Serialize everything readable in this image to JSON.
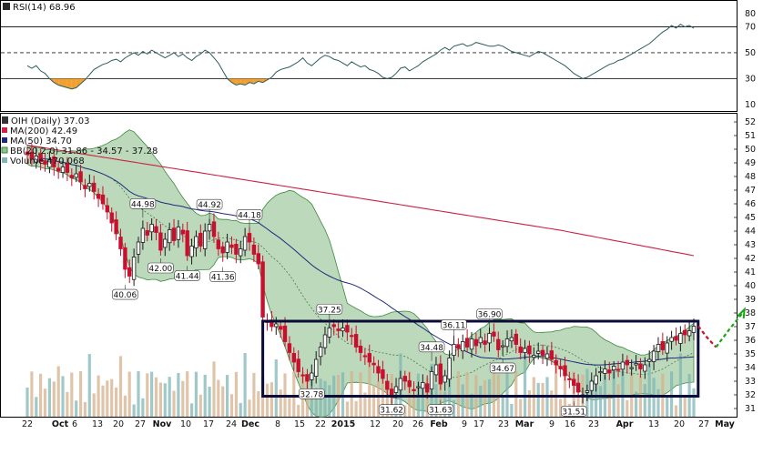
{
  "rsi_panel": {
    "label": "RSI(14) 68.96",
    "ticks": [
      80,
      70,
      50,
      30,
      10
    ],
    "bands": {
      "upper": 70,
      "mid": 50,
      "lower": 30
    },
    "range": [
      5,
      90
    ]
  },
  "price_panel": {
    "legend": [
      {
        "text": "OIH (Daily) 37.03",
        "color": "#111111"
      },
      {
        "text": "MA(200) 42.49",
        "color": "#cc2244"
      },
      {
        "text": "MA(50) 34.70",
        "color": "#1c2a7a"
      },
      {
        "text": "BB(20,2.0) 31.86 - 34.57 - 37.28",
        "color": "#3a8a3a"
      },
      {
        "text": "Volume 470,068",
        "color": "#3a8a8a"
      }
    ],
    "y_ticks": [
      52,
      51,
      50,
      49,
      48,
      47,
      46,
      45,
      44,
      43,
      42,
      41,
      40,
      39,
      38,
      37,
      36,
      35,
      34,
      33,
      32,
      31
    ],
    "y_range": [
      30.4,
      52.6
    ],
    "x_labels": [
      {
        "text": "22",
        "bold": false
      },
      {
        "text": "Oct",
        "bold": true
      },
      {
        "text": "6",
        "bold": false
      },
      {
        "text": "13",
        "bold": false
      },
      {
        "text": "20",
        "bold": false
      },
      {
        "text": "27",
        "bold": false
      },
      {
        "text": "Nov",
        "bold": true
      },
      {
        "text": "10",
        "bold": false
      },
      {
        "text": "17",
        "bold": false
      },
      {
        "text": "24",
        "bold": false
      },
      {
        "text": "Dec",
        "bold": true
      },
      {
        "text": "8",
        "bold": false
      },
      {
        "text": "15",
        "bold": false
      },
      {
        "text": "22",
        "bold": false
      },
      {
        "text": "2015",
        "bold": true
      },
      {
        "text": "12",
        "bold": false
      },
      {
        "text": "20",
        "bold": false
      },
      {
        "text": "26",
        "bold": false
      },
      {
        "text": "Feb",
        "bold": true
      },
      {
        "text": "9",
        "bold": false
      },
      {
        "text": "17",
        "bold": false
      },
      {
        "text": "23",
        "bold": false
      },
      {
        "text": "Mar",
        "bold": true
      },
      {
        "text": "9",
        "bold": false
      },
      {
        "text": "16",
        "bold": false
      },
      {
        "text": "23",
        "bold": false
      },
      {
        "text": "Apr",
        "bold": true
      },
      {
        "text": "13",
        "bold": false
      },
      {
        "text": "20",
        "bold": false
      },
      {
        "text": "27",
        "bold": false
      },
      {
        "text": "May",
        "bold": true
      }
    ],
    "price_annotations": [
      {
        "text": "44.98",
        "bar": 26,
        "price": 44.98,
        "pos": "above"
      },
      {
        "text": "44.92",
        "bar": 41,
        "price": 44.92,
        "pos": "above"
      },
      {
        "text": "44.18",
        "bar": 50,
        "price": 44.18,
        "pos": "above"
      },
      {
        "text": "42.00",
        "bar": 30,
        "price": 42.0,
        "pos": "below"
      },
      {
        "text": "41.44",
        "bar": 36,
        "price": 41.44,
        "pos": "below"
      },
      {
        "text": "41.36",
        "bar": 44,
        "price": 41.36,
        "pos": "below"
      },
      {
        "text": "40.06",
        "bar": 22,
        "price": 40.06,
        "pos": "below"
      },
      {
        "text": "37.25",
        "bar": 68,
        "price": 37.25,
        "pos": "above"
      },
      {
        "text": "32.78",
        "bar": 64,
        "price": 32.78,
        "pos": "below"
      },
      {
        "text": "36.11",
        "bar": 96,
        "price": 36.11,
        "pos": "above"
      },
      {
        "text": "36.90",
        "bar": 104,
        "price": 36.9,
        "pos": "above"
      },
      {
        "text": "34.48",
        "bar": 91,
        "price": 34.48,
        "pos": "above"
      },
      {
        "text": "34.67",
        "bar": 107,
        "price": 34.67,
        "pos": "below"
      },
      {
        "text": "31.62",
        "bar": 82,
        "price": 31.62,
        "pos": "below"
      },
      {
        "text": "31.63",
        "bar": 93,
        "price": 31.63,
        "pos": "below"
      },
      {
        "text": "31.51",
        "bar": 123,
        "price": 31.51,
        "pos": "below"
      }
    ],
    "range_box": {
      "top": 37.4,
      "bottom": 31.9,
      "from_bar": 53,
      "to_bar": 151
    }
  },
  "chart_data": {
    "type": "candlestick",
    "title": "OIH (Daily)",
    "last_close": 37.03,
    "y_range": [
      30.4,
      52.6
    ],
    "colors": {
      "up": "#1a1a1a",
      "down": "#c8102e",
      "ma200": "#cc2244",
      "ma50": "#1c2a7a",
      "bb_fill": "#8fc08f",
      "bb_edge": "#3a8a3a",
      "vol_up": "#7fb5b5",
      "vol_down": "#d6b08c"
    },
    "closes": [
      49.6,
      49.3,
      49.5,
      49.1,
      48.9,
      49.2,
      48.7,
      48.4,
      48.7,
      48.3,
      47.9,
      48.2,
      47.6,
      47.1,
      47.5,
      46.9,
      46.4,
      46.0,
      45.4,
      44.6,
      43.8,
      42.7,
      41.2,
      40.7,
      42.1,
      43.2,
      44.2,
      43.7,
      44.5,
      43.9,
      42.6,
      43.4,
      44.1,
      43.3,
      44.3,
      43.8,
      42.2,
      42.9,
      43.6,
      42.9,
      44.0,
      44.5,
      43.6,
      42.7,
      42.4,
      43.2,
      42.8,
      42.3,
      42.7,
      43.6,
      43.2,
      42.3,
      41.6,
      37.7,
      37.3,
      37.0,
      37.2,
      36.8,
      35.9,
      35.1,
      34.4,
      33.7,
      33.4,
      33.0,
      33.6,
      34.6,
      35.5,
      36.4,
      36.9,
      37.0,
      36.7,
      36.9,
      36.6,
      36.3,
      35.5,
      35.1,
      34.8,
      34.4,
      34.2,
      33.6,
      33.2,
      32.4,
      32.0,
      32.6,
      33.2,
      33.0,
      32.6,
      32.3,
      32.6,
      32.9,
      32.2,
      33.7,
      34.2,
      32.8,
      33.4,
      34.7,
      35.7,
      35.4,
      35.9,
      35.5,
      36.1,
      35.6,
      36.2,
      35.7,
      36.5,
      36.3,
      35.3,
      35.6,
      36.1,
      36.2,
      35.7,
      35.1,
      35.4,
      35.0,
      34.9,
      35.2,
      34.9,
      35.0,
      34.6,
      34.2,
      33.9,
      33.4,
      33.1,
      32.7,
      32.2,
      32.0,
      32.3,
      33.0,
      33.4,
      33.7,
      33.9,
      33.6,
      34.1,
      33.8,
      34.4,
      34.2,
      34.0,
      34.3,
      33.9,
      34.2,
      34.6,
      35.2,
      35.7,
      35.3,
      35.8,
      36.2,
      36.0,
      36.5,
      36.4,
      36.7,
      37.03
    ],
    "forecast": [
      {
        "name": "down",
        "points": [
          [
            151,
            37.03
          ],
          [
            153,
            36.2
          ],
          [
            155,
            35.5
          ]
        ],
        "color": "#c8102e"
      },
      {
        "name": "up",
        "points": [
          [
            155,
            35.5
          ],
          [
            158,
            36.8
          ],
          [
            161,
            38.0
          ]
        ],
        "color": "#1aa51a"
      }
    ],
    "rsi_values": [
      40,
      38,
      40,
      36,
      34,
      30,
      27,
      25,
      24,
      23,
      22,
      23,
      26,
      29,
      33,
      37,
      39,
      41,
      42,
      44,
      45,
      43,
      46,
      48,
      50,
      48,
      51,
      49,
      52,
      50,
      48,
      46,
      48,
      50,
      47,
      49,
      46,
      44,
      47,
      49,
      52,
      50,
      46,
      42,
      36,
      30,
      27,
      25,
      26,
      25,
      27,
      26,
      28,
      27,
      29,
      31,
      35,
      37,
      38,
      39,
      41,
      43,
      46,
      42,
      40,
      43,
      46,
      48,
      47,
      45,
      44,
      42,
      40,
      43,
      41,
      39,
      40,
      37,
      36,
      34,
      31,
      30,
      31,
      34,
      38,
      39,
      36,
      38,
      40,
      43,
      45,
      47,
      49,
      52,
      54,
      52,
      55,
      56,
      57,
      55,
      56,
      58,
      57,
      56,
      55,
      55,
      56,
      55,
      53,
      51,
      50,
      49,
      48,
      47,
      49,
      51,
      50,
      48,
      46,
      44,
      42,
      40,
      37,
      34,
      32,
      30,
      31,
      33,
      35,
      37,
      39,
      41,
      42,
      44,
      45,
      47,
      49,
      51,
      53,
      55,
      57,
      60,
      63,
      66,
      68,
      71,
      69,
      72,
      70,
      71,
      69
    ]
  }
}
